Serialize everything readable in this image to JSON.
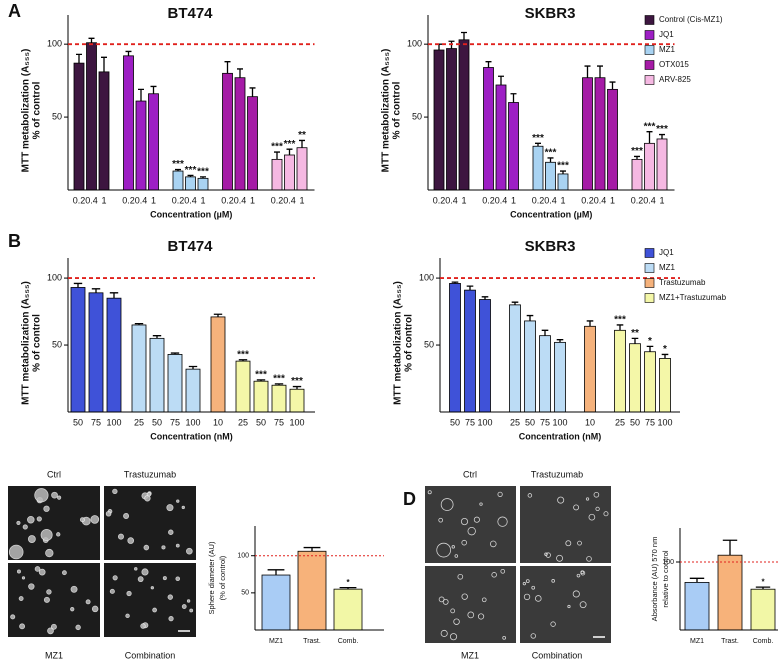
{
  "panel_labels": [
    "A",
    "B",
    "C",
    "D"
  ],
  "micrographs": [
    {
      "labels": [
        "Ctrl",
        "Trastuzumab",
        "MZ1",
        "Combination"
      ]
    },
    {
      "labels": [
        "Ctrl",
        "Trastuzumab",
        "MZ1",
        "Combination"
      ]
    }
  ],
  "chart_data": [
    {
      "type": "bar",
      "title": "BT474",
      "ylabel": [
        "MTT metabolization (A₅₅₅)",
        "% of control"
      ],
      "xlabel": "Concentration (µM)",
      "ylim": [
        0,
        120
      ],
      "yticks": [
        50,
        100
      ],
      "reference_line": 100,
      "series": [
        {
          "color": "#3d1640",
          "categories": [
            "0.2",
            "0.4",
            "1"
          ],
          "values": [
            87,
            101,
            81
          ],
          "errors": [
            6,
            3,
            10
          ],
          "annotations": [
            null,
            null,
            null
          ]
        },
        {
          "color": "#9d1fc4",
          "categories": [
            "0.2",
            "0.4",
            "1"
          ],
          "values": [
            92,
            61,
            66
          ],
          "errors": [
            3,
            8,
            5
          ],
          "annotations": [
            null,
            null,
            null
          ]
        },
        {
          "color": "#a9d3f2",
          "categories": [
            "0.2",
            "0.4",
            "1"
          ],
          "values": [
            13,
            9,
            8
          ],
          "errors": [
            1,
            1,
            1
          ],
          "annotations": [
            "***",
            "***",
            "***"
          ]
        },
        {
          "color": "#a51ba6",
          "categories": [
            "0.2",
            "0.4",
            "1"
          ],
          "values": [
            80,
            77,
            64
          ],
          "errors": [
            8,
            6,
            6
          ],
          "annotations": [
            null,
            null,
            null
          ]
        },
        {
          "color": "#f5b8e2",
          "categories": [
            "0.2",
            "0.4",
            "1"
          ],
          "values": [
            21,
            24,
            29
          ],
          "errors": [
            5,
            4,
            5
          ],
          "annotations": [
            "***",
            "***",
            "**"
          ]
        }
      ]
    },
    {
      "type": "bar",
      "title": "SKBR3",
      "ylabel": [
        "MTT metabolization (A₅₅₅)",
        "% of control"
      ],
      "xlabel": "Concentration (µM)",
      "ylim": [
        0,
        120
      ],
      "yticks": [
        50,
        100
      ],
      "reference_line": 100,
      "legend": true,
      "series": [
        {
          "name": "Control (Cis-MZ1)",
          "color": "#3d1640",
          "categories": [
            "0.2",
            "0.4",
            "1"
          ],
          "values": [
            96,
            97,
            103
          ],
          "errors": [
            4,
            5,
            5
          ],
          "annotations": [
            null,
            null,
            null
          ]
        },
        {
          "name": "JQ1",
          "color": "#9d1fc4",
          "categories": [
            "0.2",
            "0.4",
            "1"
          ],
          "values": [
            84,
            72,
            60
          ],
          "errors": [
            4,
            6,
            6
          ],
          "annotations": [
            null,
            null,
            null
          ]
        },
        {
          "name": "MZ1",
          "color": "#a9d3f2",
          "categories": [
            "0.2",
            "0.4",
            "1"
          ],
          "values": [
            30,
            19,
            11
          ],
          "errors": [
            2,
            3,
            2
          ],
          "annotations": [
            "***",
            "***",
            "***"
          ]
        },
        {
          "name": "OTX015",
          "color": "#a51ba6",
          "categories": [
            "0.2",
            "0.4",
            "1"
          ],
          "values": [
            77,
            77,
            69
          ],
          "errors": [
            8,
            8,
            5
          ],
          "annotations": [
            null,
            null,
            null
          ]
        },
        {
          "name": "ARV-825",
          "color": "#f5b8e2",
          "categories": [
            "0.2",
            "0.4",
            "1"
          ],
          "values": [
            21,
            32,
            35
          ],
          "errors": [
            2,
            8,
            3
          ],
          "annotations": [
            "***",
            "***",
            "***"
          ]
        }
      ]
    },
    {
      "type": "bar",
      "title": "BT474",
      "ylabel": [
        "MTT metabolization (A₅₅₅)",
        "% of control"
      ],
      "xlabel": "Concentration (nM)",
      "ylim": [
        0,
        115
      ],
      "yticks": [
        50,
        100
      ],
      "reference_line": 100,
      "series": [
        {
          "color": "#3f52d8",
          "categories": [
            "50",
            "75",
            "100"
          ],
          "values": [
            93,
            89,
            85
          ],
          "errors": [
            3,
            3,
            4
          ],
          "annotations": [
            null,
            null,
            null
          ]
        },
        {
          "color": "#bcdcf5",
          "categories": [
            "25",
            "50",
            "75",
            "100"
          ],
          "values": [
            65,
            55,
            43,
            32
          ],
          "errors": [
            1,
            2,
            1,
            2
          ],
          "annotations": [
            null,
            null,
            null,
            null
          ]
        },
        {
          "color": "#f5b27c",
          "categories": [
            "10"
          ],
          "values": [
            71
          ],
          "errors": [
            2
          ],
          "annotations": [
            null
          ]
        },
        {
          "color": "#f4f7a8",
          "categories": [
            "25",
            "50",
            "75",
            "100"
          ],
          "values": [
            38,
            23,
            20,
            17
          ],
          "errors": [
            1,
            1,
            1,
            2
          ],
          "annotations": [
            "***",
            "***",
            "***",
            "***"
          ]
        }
      ]
    },
    {
      "type": "bar",
      "title": "SKBR3",
      "ylabel": [
        "MTT metabolization (A₅₅₅)",
        "% of control"
      ],
      "xlabel": "Concentration (nM)",
      "ylim": [
        0,
        115
      ],
      "yticks": [
        50,
        100
      ],
      "reference_line": 100,
      "legend": true,
      "series": [
        {
          "name": "JQ1",
          "color": "#3f52d8",
          "categories": [
            "50",
            "75",
            "100"
          ],
          "values": [
            96,
            91,
            84
          ],
          "errors": [
            1,
            3,
            2
          ],
          "annotations": [
            null,
            null,
            null
          ]
        },
        {
          "name": "MZ1",
          "color": "#bcdcf5",
          "categories": [
            "25",
            "50",
            "75",
            "100"
          ],
          "values": [
            80,
            68,
            57,
            52
          ],
          "errors": [
            2,
            4,
            4,
            2
          ],
          "annotations": [
            null,
            null,
            null,
            null
          ]
        },
        {
          "name": "Trastuzumab",
          "color": "#f5b27c",
          "categories": [
            "10"
          ],
          "values": [
            64
          ],
          "errors": [
            4
          ],
          "annotations": [
            null
          ]
        },
        {
          "name": "MZ1+Trastuzumab",
          "color": "#f4f7a8",
          "categories": [
            "25",
            "50",
            "75",
            "100"
          ],
          "values": [
            61,
            51,
            45,
            40
          ],
          "errors": [
            4,
            4,
            4,
            3
          ],
          "annotations": [
            "***",
            "**",
            "*",
            "*"
          ]
        }
      ]
    },
    {
      "type": "bar",
      "ylabel": [
        "Sphere diameter (AU)",
        "(% of control)"
      ],
      "ylim": [
        0,
        140
      ],
      "yticks": [
        50,
        100
      ],
      "reference_line": 100,
      "categories": [
        "MZ1",
        "Trast.",
        "Comb."
      ],
      "values": [
        74,
        106,
        55
      ],
      "errors": [
        7,
        5,
        2
      ],
      "colors": [
        "#a9ccf5",
        "#f7b27a",
        "#f2f7a6"
      ],
      "annotations": [
        null,
        null,
        "*"
      ]
    },
    {
      "type": "bar",
      "ylabel": [
        "Absorbance (AU) 570 nm",
        "relative to control"
      ],
      "ylim": [
        0,
        150
      ],
      "yticks": [
        100
      ],
      "reference_line": 100,
      "categories": [
        "MZ1",
        "Trast.",
        "Comb."
      ],
      "values": [
        70,
        110,
        60
      ],
      "errors": [
        6,
        22,
        3
      ],
      "colors": [
        "#a9ccf5",
        "#f7b27a",
        "#f2f7a6"
      ],
      "annotations": [
        null,
        null,
        "*"
      ]
    }
  ]
}
